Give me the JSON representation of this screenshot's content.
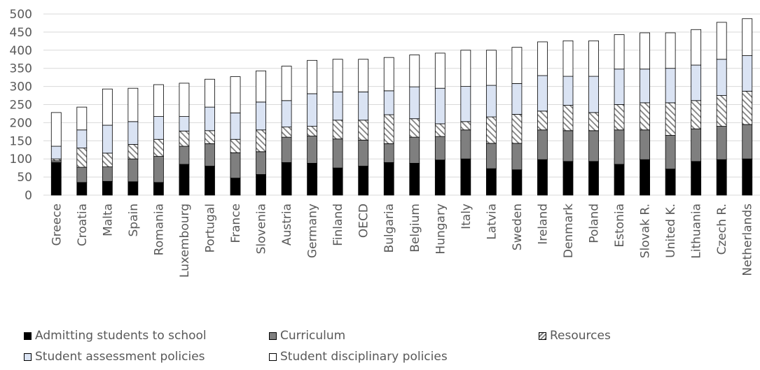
{
  "chart_data": {
    "type": "bar",
    "stacked": true,
    "categories": [
      "Greece",
      "Croatia",
      "Malta",
      "Spain",
      "Romania",
      "Luxembourg",
      "Portugal",
      "France",
      "Slovenia",
      "Austria",
      "Germany",
      "Finland",
      "OECD",
      "Bulgaria",
      "Belgium",
      "Hungary",
      "Italy",
      "Latvia",
      "Sweden",
      "Ireland",
      "Denmark",
      "Poland",
      "Estonia",
      "Slovak R.",
      "United K.",
      "Lithuania",
      "Czech R.",
      "Netherlands"
    ],
    "ylim": [
      0,
      500
    ],
    "yticks": [
      0,
      50,
      100,
      150,
      200,
      250,
      300,
      350,
      400,
      450,
      500
    ],
    "grid": true,
    "legend_position": "bottom",
    "series": [
      {
        "name": "Admitting students to school",
        "color": "#000000",
        "pattern": "solid",
        "values": [
          90,
          35,
          38,
          37,
          35,
          85,
          80,
          47,
          57,
          90,
          88,
          75,
          80,
          90,
          88,
          97,
          100,
          73,
          70,
          98,
          93,
          93,
          85,
          98,
          72,
          93,
          98,
          100
        ]
      },
      {
        "name": "Curriculum",
        "color": "#7f7f7f",
        "pattern": "solid",
        "values": [
          5,
          42,
          40,
          63,
          72,
          50,
          62,
          70,
          63,
          70,
          75,
          80,
          72,
          52,
          72,
          65,
          80,
          70,
          73,
          82,
          85,
          85,
          95,
          82,
          93,
          90,
          92,
          95
        ]
      },
      {
        "name": "Resources",
        "color": "#7f7f7f",
        "pattern": "hatch",
        "values": [
          5,
          53,
          38,
          40,
          47,
          42,
          36,
          37,
          60,
          28,
          27,
          52,
          55,
          80,
          51,
          35,
          23,
          73,
          80,
          52,
          70,
          50,
          70,
          75,
          90,
          78,
          85,
          92
        ]
      },
      {
        "name": "Student assessment policies",
        "color": "#dae3f3",
        "pattern": "solid",
        "values": [
          35,
          50,
          77,
          63,
          63,
          40,
          65,
          73,
          77,
          73,
          90,
          78,
          78,
          66,
          88,
          98,
          97,
          87,
          85,
          98,
          80,
          100,
          98,
          93,
          95,
          98,
          100,
          98
        ]
      },
      {
        "name": "Student disciplinary policies",
        "color": "#ffffff",
        "pattern": "solid",
        "values": [
          93,
          63,
          100,
          92,
          88,
          92,
          77,
          100,
          86,
          95,
          92,
          90,
          90,
          92,
          88,
          97,
          100,
          97,
          100,
          93,
          98,
          98,
          95,
          100,
          98,
          98,
          102,
          102
        ]
      }
    ]
  }
}
